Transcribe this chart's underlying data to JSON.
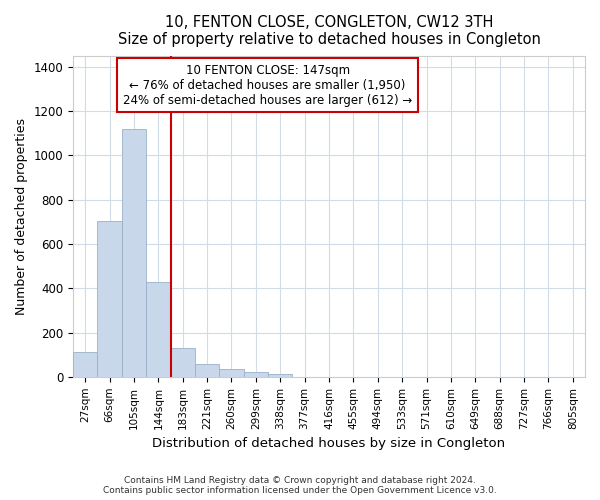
{
  "title": "10, FENTON CLOSE, CONGLETON, CW12 3TH",
  "subtitle": "Size of property relative to detached houses in Congleton",
  "xlabel": "Distribution of detached houses by size in Congleton",
  "ylabel": "Number of detached properties",
  "categories": [
    "27sqm",
    "66sqm",
    "105sqm",
    "144sqm",
    "183sqm",
    "221sqm",
    "260sqm",
    "299sqm",
    "338sqm",
    "377sqm",
    "416sqm",
    "455sqm",
    "494sqm",
    "533sqm",
    "571sqm",
    "610sqm",
    "649sqm",
    "688sqm",
    "727sqm",
    "766sqm",
    "805sqm"
  ],
  "values": [
    110,
    705,
    1120,
    430,
    130,
    57,
    35,
    22,
    12,
    0,
    0,
    0,
    0,
    0,
    0,
    0,
    0,
    0,
    0,
    0,
    0
  ],
  "bar_color": "#c8d8ea",
  "bar_edge_color": "#9ab0c8",
  "marker_line_color": "#cc0000",
  "annotation_box_color": "#cc0000",
  "marker_label": "10 FENTON CLOSE: 147sqm",
  "annotation_line1": "← 76% of detached houses are smaller (1,950)",
  "annotation_line2": "24% of semi-detached houses are larger (612) →",
  "ylim": [
    0,
    1450
  ],
  "yticks": [
    0,
    200,
    400,
    600,
    800,
    1000,
    1200,
    1400
  ],
  "background_color": "#ffffff",
  "plot_background": "#ffffff",
  "grid_color": "#d0dce8",
  "footer1": "Contains HM Land Registry data © Crown copyright and database right 2024.",
  "footer2": "Contains public sector information licensed under the Open Government Licence v3.0."
}
